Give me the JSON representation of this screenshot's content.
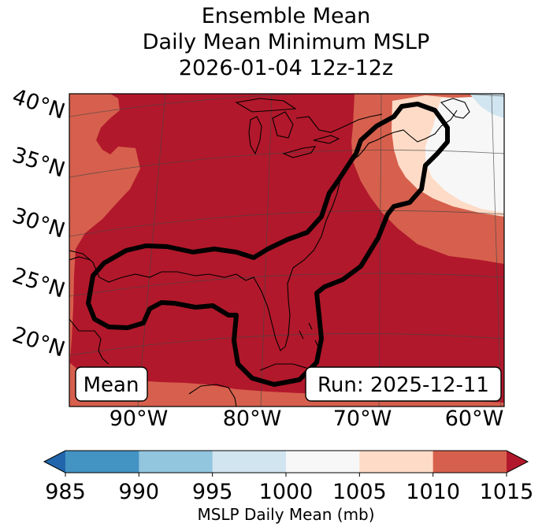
{
  "chart_data": {
    "type": "heatmap",
    "title_lines": [
      "Ensemble Mean",
      "Daily Mean Minimum MSLP",
      "2026-01-04 12z-12z"
    ],
    "lat_labels": [
      "40°N",
      "35°N",
      "30°N",
      "25°N",
      "20°N"
    ],
    "lon_labels": [
      "90°W",
      "80°W",
      "70°W",
      "60°W"
    ],
    "legend_left": "Mean",
    "legend_right": "Run: 2025-12-11",
    "colorbar": {
      "label": "MSLP Daily Mean (mb)",
      "ticks": [
        "985",
        "990",
        "995",
        "1000",
        "1005",
        "1010",
        "1015"
      ],
      "levels": [
        985,
        990,
        995,
        1000,
        1005,
        1010,
        1015
      ],
      "colors": [
        "#4393c3",
        "#92c5de",
        "#d1e5f0",
        "#f7f7f7",
        "#fddbc7",
        "#d6604d",
        "#b2182b"
      ],
      "under_color": "#2166ac",
      "over_color": "#b2182b",
      "extend": "both"
    },
    "field_units": "mb",
    "region_fields": [
      {
        "name": "background",
        "value_range": "> 1015",
        "color": "#b2182b"
      },
      {
        "name": "western land",
        "value_range": "1010-1015",
        "color": "#d6604d"
      },
      {
        "name": "southern Caribbean",
        "value_range": "1010-1015",
        "color": "#d6604d"
      },
      {
        "name": "northeast Atlantic",
        "value_range": "1010-1015",
        "color": "#d6604d"
      },
      {
        "name": "Nova Scotia offshore",
        "value_range": "1005-1010",
        "color": "#fddbc7"
      },
      {
        "name": "far northeast",
        "value_range": "1000-1005",
        "color": "#f7f7f7"
      },
      {
        "name": "top right corner",
        "value_range": "995-1000",
        "color": "#d1e5f0"
      }
    ],
    "contour": {
      "description": "ensemble mean outline",
      "color": "#000000"
    }
  }
}
